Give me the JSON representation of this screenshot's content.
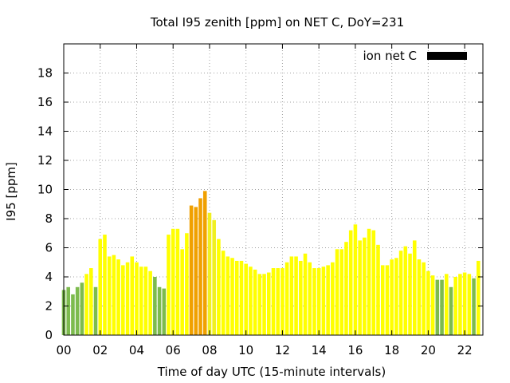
{
  "chart_data": {
    "type": "bar",
    "title": "Total I95 zenith [ppm] on NET C, DoY=231",
    "xlabel": "Time of day UTC (15-minute intervals)",
    "ylabel": "I95 [ppm]",
    "xlim": [
      0,
      23
    ],
    "ylim": [
      0,
      20
    ],
    "x_ticks": [
      {
        "value": 0,
        "label": "00"
      },
      {
        "value": 2,
        "label": "02"
      },
      {
        "value": 4,
        "label": "04"
      },
      {
        "value": 6,
        "label": "06"
      },
      {
        "value": 8,
        "label": "08"
      },
      {
        "value": 10,
        "label": "10"
      },
      {
        "value": 12,
        "label": "12"
      },
      {
        "value": 14,
        "label": "14"
      },
      {
        "value": 16,
        "label": "16"
      },
      {
        "value": 18,
        "label": "18"
      },
      {
        "value": 20,
        "label": "20"
      },
      {
        "value": 22,
        "label": "22"
      }
    ],
    "y_ticks": [
      0,
      2,
      4,
      6,
      8,
      10,
      12,
      14,
      16,
      18
    ],
    "grid": true,
    "legend": {
      "position": "top-right",
      "label": "ion net C",
      "color": "#000000"
    },
    "bar_width_hours": 0.2,
    "colors": {
      "green": "#7dbb4e",
      "yellow": "#ffff00",
      "yellow_dark": "#f0f020",
      "orange": "#f0a000"
    },
    "series": [
      {
        "x": [
          0.0,
          0.25,
          0.5,
          0.75,
          1.0,
          1.25,
          1.5,
          1.75,
          2.0,
          2.25,
          2.5,
          2.75,
          3.0,
          3.25,
          3.5,
          3.75,
          4.0,
          4.25,
          4.5,
          4.75,
          5.0,
          5.25,
          5.5,
          5.75,
          6.0,
          6.25,
          6.5,
          6.75,
          7.0,
          7.25,
          7.5,
          7.75,
          8.0,
          8.25,
          8.5,
          8.75,
          9.0,
          9.25,
          9.5,
          9.75,
          10.0,
          10.25,
          10.5,
          10.75,
          11.0,
          11.25,
          11.5,
          11.75,
          12.0,
          12.25,
          12.5,
          12.75,
          13.0,
          13.25,
          13.5,
          13.75,
          14.0,
          14.25,
          14.5,
          14.75,
          15.0,
          15.25,
          15.5,
          15.75,
          16.0,
          16.25,
          16.5,
          16.75,
          17.0,
          17.25,
          17.5,
          17.75,
          18.0,
          18.25,
          18.5,
          18.75,
          19.0,
          19.25,
          19.5,
          19.75,
          20.0,
          20.25,
          20.5,
          20.75,
          21.0,
          21.25,
          21.5,
          21.75,
          22.0,
          22.25,
          22.5,
          22.75
        ],
        "values": [
          3.1,
          3.3,
          2.8,
          3.3,
          3.6,
          4.2,
          4.6,
          3.3,
          6.6,
          6.9,
          5.4,
          5.5,
          5.2,
          4.8,
          5.0,
          5.4,
          5.0,
          4.7,
          4.7,
          4.4,
          4.0,
          3.3,
          3.2,
          6.9,
          7.3,
          7.3,
          5.9,
          7.0,
          8.9,
          8.8,
          9.4,
          9.9,
          8.4,
          7.9,
          6.6,
          5.8,
          5.4,
          5.3,
          5.1,
          5.1,
          4.9,
          4.7,
          4.5,
          4.2,
          4.2,
          4.3,
          4.6,
          4.6,
          4.6,
          5.0,
          5.4,
          5.4,
          5.1,
          5.6,
          5.0,
          4.6,
          4.6,
          4.7,
          4.8,
          5.0,
          5.9,
          5.9,
          6.4,
          7.2,
          7.6,
          6.5,
          6.7,
          7.3,
          7.2,
          6.2,
          4.8,
          4.8,
          5.2,
          5.3,
          5.8,
          6.1,
          5.6,
          6.5,
          5.2,
          5.0,
          4.4,
          4.1,
          3.8,
          3.8,
          4.2,
          3.3,
          4.0,
          4.2,
          4.3,
          4.2,
          3.9,
          5.1
        ],
        "colors": [
          "green",
          "green",
          "green",
          "green",
          "green",
          "yellow",
          "yellow",
          "green",
          "yellow",
          "yellow",
          "yellow",
          "yellow",
          "yellow",
          "yellow",
          "yellow",
          "yellow",
          "yellow",
          "yellow",
          "yellow",
          "yellow",
          "green",
          "green",
          "green",
          "yellow",
          "yellow",
          "yellow",
          "yellow",
          "yellow",
          "orange",
          "orange",
          "orange",
          "orange",
          "yellow_dark",
          "yellow_dark",
          "yellow",
          "yellow",
          "yellow",
          "yellow",
          "yellow",
          "yellow",
          "yellow",
          "yellow",
          "yellow",
          "yellow",
          "yellow",
          "yellow",
          "yellow",
          "yellow",
          "yellow",
          "yellow",
          "yellow",
          "yellow",
          "yellow",
          "yellow",
          "yellow",
          "yellow",
          "yellow",
          "yellow",
          "yellow",
          "yellow",
          "yellow",
          "yellow",
          "yellow",
          "yellow",
          "yellow",
          "yellow",
          "yellow",
          "yellow",
          "yellow",
          "yellow",
          "yellow",
          "yellow",
          "yellow",
          "yellow",
          "yellow",
          "yellow",
          "yellow",
          "yellow",
          "yellow",
          "yellow",
          "yellow",
          "yellow",
          "green",
          "green",
          "yellow",
          "green",
          "yellow",
          "yellow",
          "yellow",
          "yellow",
          "green",
          "yellow"
        ]
      }
    ]
  }
}
